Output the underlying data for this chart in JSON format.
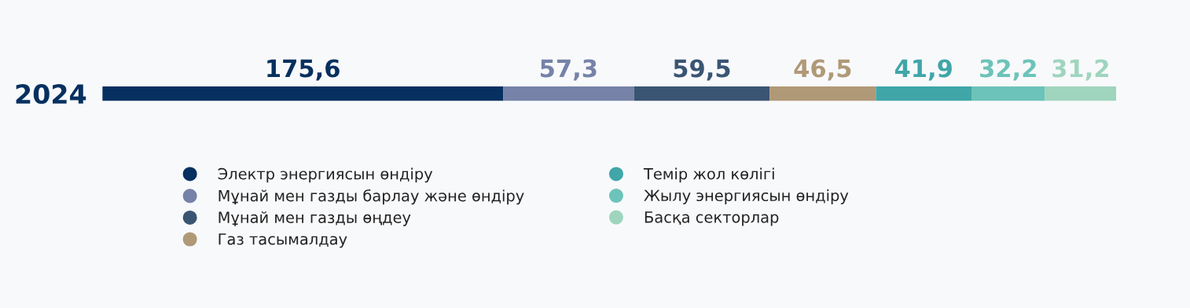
{
  "chart_data": {
    "type": "bar",
    "orientation": "horizontal",
    "stacked": true,
    "categories": [
      "2024"
    ],
    "series": [
      {
        "name": "Электр энергиясын өндіру",
        "color": "#06305f",
        "values": [
          175.6
        ],
        "value_labels": [
          "175,6"
        ]
      },
      {
        "name": "Мұнай мен газды барлау және өндіру",
        "color": "#7682a8",
        "values": [
          57.3
        ],
        "value_labels": [
          "57,3"
        ]
      },
      {
        "name": "Мұнай мен газды өңдеу",
        "color": "#3a5573",
        "values": [
          59.5
        ],
        "value_labels": [
          "59,5"
        ]
      },
      {
        "name": "Газ тасымалдау",
        "color": "#b09977",
        "values": [
          46.5
        ],
        "value_labels": [
          "46,5"
        ]
      },
      {
        "name": "Темір жол көлігі",
        "color": "#40a6a8",
        "values": [
          41.9
        ],
        "value_labels": [
          "41,9"
        ]
      },
      {
        "name": "Жылу энергиясын өндіру",
        "color": "#6cc3b9",
        "values": [
          32.2
        ],
        "value_labels": [
          "32,2"
        ]
      },
      {
        "name": "Басқа секторлар",
        "color": "#9fd5be",
        "values": [
          31.2
        ],
        "value_labels": [
          "31,2"
        ]
      }
    ],
    "legend": "bottom",
    "tick_labels": "y",
    "grid": false
  }
}
